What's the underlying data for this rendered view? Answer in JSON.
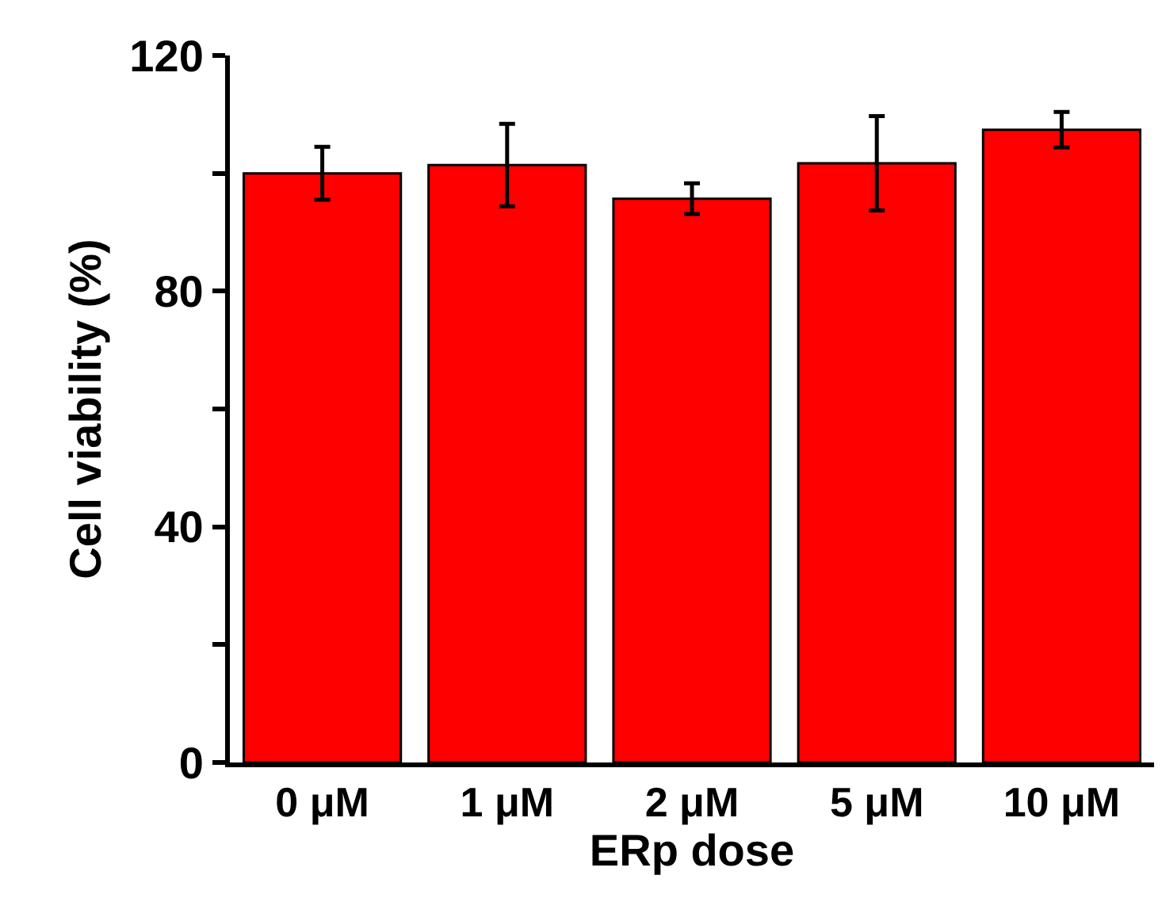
{
  "chart_data": {
    "type": "bar",
    "xlabel": "ERp dose",
    "ylabel": "Cell viability (%)",
    "categories": [
      "0 μM",
      "1 μM",
      "2 μM",
      "5 μM",
      "10 μM"
    ],
    "values": [
      100,
      101.4,
      95.7,
      101.7,
      107.4
    ],
    "errors": [
      4.5,
      7,
      2.6,
      8,
      3
    ],
    "color": "#ff0000",
    "ylim": [
      0,
      120
    ],
    "yticks": [
      0,
      {
        "value": 20,
        "label": null
      },
      40,
      {
        "value": 60,
        "label": null
      },
      80,
      {
        "value": 100,
        "label": null
      },
      120
    ],
    "legend": false
  }
}
